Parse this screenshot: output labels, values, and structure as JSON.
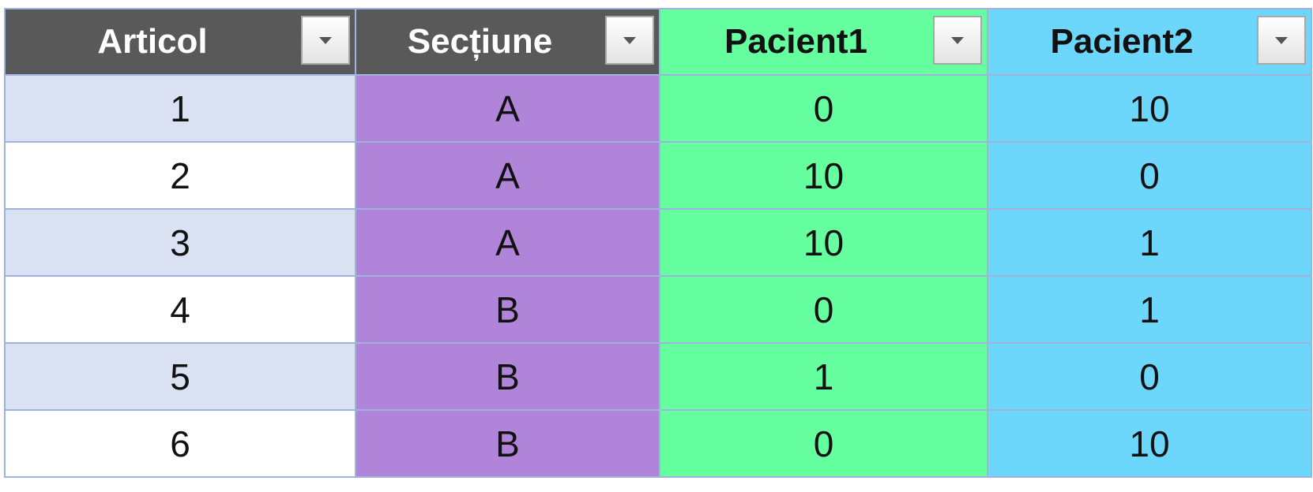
{
  "table": {
    "header": [
      "Articol",
      "Secțiune",
      "Pacient1",
      "Pacient2"
    ],
    "rows": [
      [
        1,
        "A",
        0,
        10
      ],
      [
        2,
        "A",
        10,
        0
      ],
      [
        3,
        "A",
        10,
        1
      ],
      [
        4,
        "B",
        0,
        1
      ],
      [
        5,
        "B",
        1,
        0
      ],
      [
        6,
        "B",
        0,
        10
      ]
    ]
  }
}
